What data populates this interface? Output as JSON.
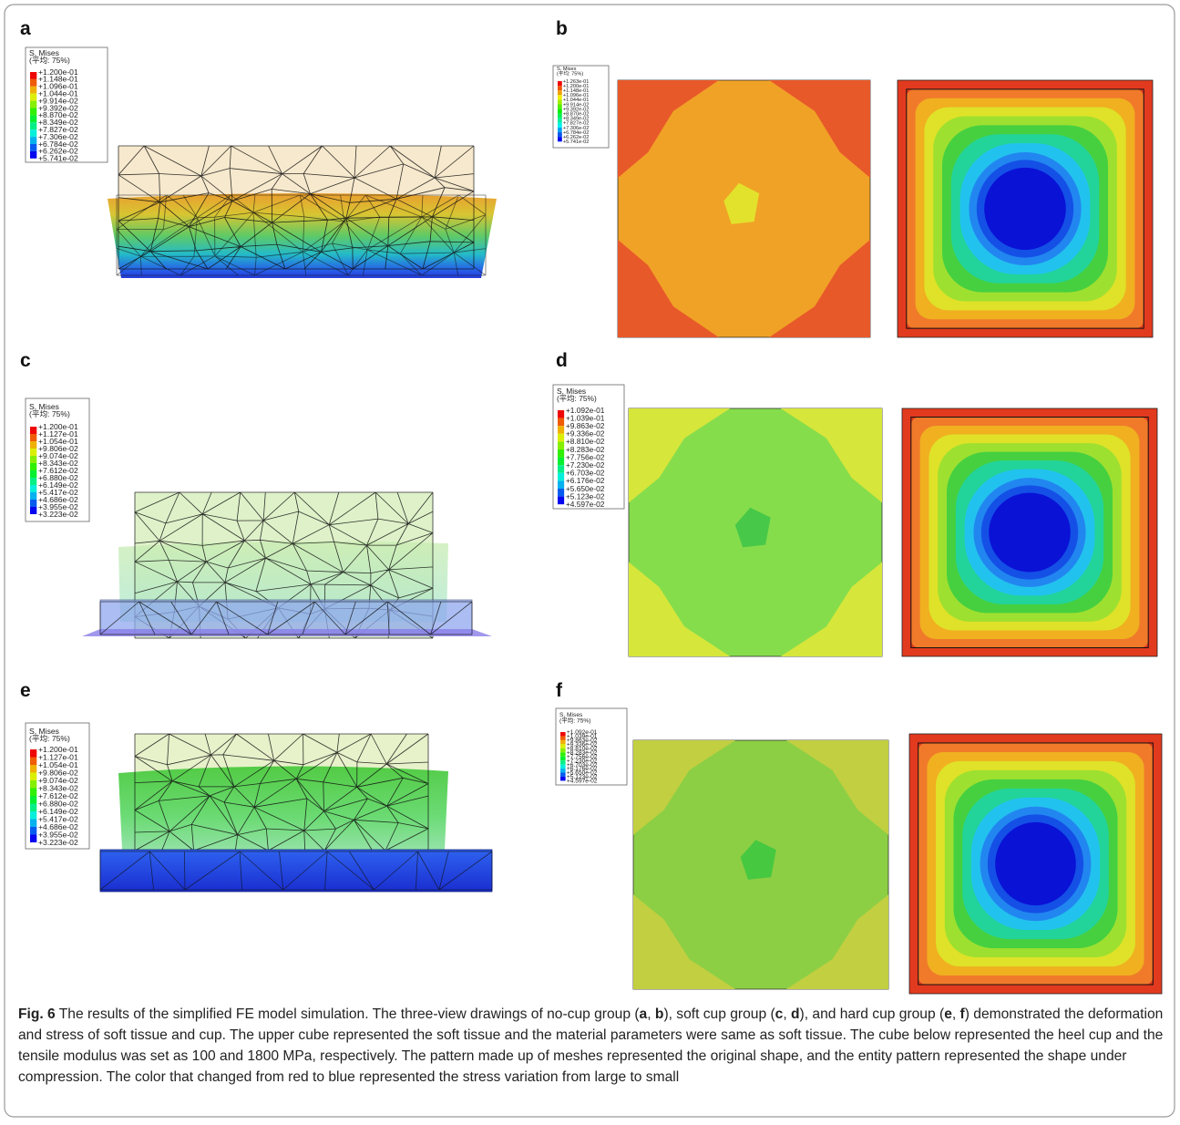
{
  "panels": [
    {
      "label": "a",
      "legend": {
        "title": "S, Mises",
        "subtitle": "(平均: 75%)",
        "values": [
          "+1.200e-01",
          "+1.148e-01",
          "+1.096e-01",
          "+1.044e-01",
          "+9.914e-02",
          "+9.392e-02",
          "+8.870e-02",
          "+8.349e-02",
          "+7.827e-02",
          "+7.306e-02",
          "+6.784e-02",
          "+6.262e-02",
          "+5.741e-02"
        ]
      }
    },
    {
      "label": "b",
      "legend": {
        "title": "S, Mises",
        "subtitle": "(平均: 75%)",
        "values": [
          "+1.263e-01",
          "+1.200e-01",
          "+1.148e-01",
          "+1.096e-01",
          "+1.044e-01",
          "+9.914e-02",
          "+9.392e-02",
          "+8.870e-02",
          "+8.349e-02",
          "+7.827e-02",
          "+7.306e-02",
          "+6.784e-02",
          "+6.262e-02",
          "+5.741e-02"
        ]
      }
    },
    {
      "label": "c",
      "legend": {
        "title": "S, Mises",
        "subtitle": "(平均: 75%)",
        "values": [
          "+1.200e-01",
          "+1.127e-01",
          "+1.054e-01",
          "+9.806e-02",
          "+9.074e-02",
          "+8.343e-02",
          "+7.612e-02",
          "+6.880e-02",
          "+6.149e-02",
          "+5.417e-02",
          "+4.686e-02",
          "+3.955e-02",
          "+3.223e-02"
        ]
      }
    },
    {
      "label": "d",
      "legend": {
        "title": "S, Mises",
        "subtitle": "(平均: 75%)",
        "values": [
          "+1.092e-01",
          "+1.039e-01",
          "+9.863e-02",
          "+9.336e-02",
          "+8.810e-02",
          "+8.283e-02",
          "+7.756e-02",
          "+7.230e-02",
          "+6.703e-02",
          "+6.176e-02",
          "+5.650e-02",
          "+5.123e-02",
          "+4.597e-02"
        ]
      }
    },
    {
      "label": "e",
      "legend": {
        "title": "S, Mises",
        "subtitle": "(平均: 75%)",
        "values": [
          "+1.200e-01",
          "+1.127e-01",
          "+1.054e-01",
          "+9.806e-02",
          "+9.074e-02",
          "+8.343e-02",
          "+7.612e-02",
          "+6.880e-02",
          "+6.149e-02",
          "+5.417e-02",
          "+4.686e-02",
          "+3.955e-02",
          "+3.223e-02"
        ]
      }
    },
    {
      "label": "f",
      "legend": {
        "title": "S, Mises",
        "subtitle": "(平均: 75%)",
        "values": [
          "+1.092e-01",
          "+1.039e-01",
          "+9.863e-02",
          "+9.336e-02",
          "+8.810e-02",
          "+8.283e-02",
          "+7.756e-02",
          "+7.230e-02",
          "+6.703e-02",
          "+6.176e-02",
          "+5.650e-02",
          "+5.123e-02",
          "+4.597e-02"
        ]
      }
    }
  ],
  "caption": {
    "runs": [
      {
        "text": "Fig. 6",
        "bold": true
      },
      {
        "text": " The results of the simplified FE model simulation. The three-view drawings of no-cup group ("
      },
      {
        "text": "a",
        "bold": true
      },
      {
        "text": ", "
      },
      {
        "text": "b",
        "bold": true
      },
      {
        "text": "), soft cup group ("
      },
      {
        "text": "c",
        "bold": true
      },
      {
        "text": ", "
      },
      {
        "text": "d",
        "bold": true
      },
      {
        "text": "), and hard cup group ("
      },
      {
        "text": "e",
        "bold": true
      },
      {
        "text": ", "
      },
      {
        "text": "f",
        "bold": true
      },
      {
        "text": ") demonstrated the deformation and stress of soft tissue and cup. The upper cube represented the soft tissue and the material parameters were same as soft tissue. The cube below represented the heel cup and the tensile modulus was set as 100 and 1800 MPa, respectively. The pattern made up of meshes represented the original shape, and the entity pattern represented the shape under compression. The color that changed from red to blue represented the stress variation from large to small"
      }
    ]
  }
}
